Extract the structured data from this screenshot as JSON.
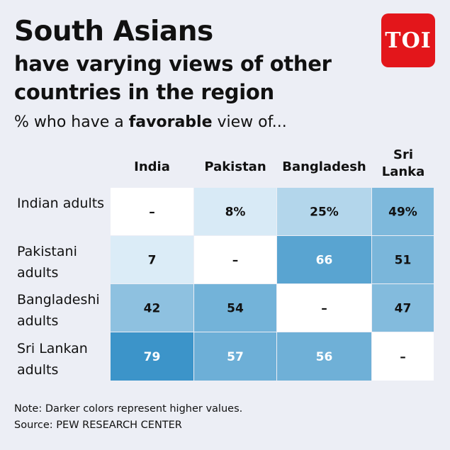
{
  "header": {
    "title": "South Asians",
    "subtitle": "have varying views of other countries in the region",
    "lead_prefix": "% who have a ",
    "lead_bold": "favorable",
    "lead_suffix": " view of..."
  },
  "logo": {
    "text": "TOI",
    "color": "#e3161b"
  },
  "footer": {
    "note": "Note: Darker colors represent higher values.",
    "source": "Source: PEW RESEARCH CENTER"
  },
  "chart_data": {
    "type": "heatmap",
    "columns": [
      "India",
      "Pakistan",
      "Bangladesh",
      "Sri Lanka"
    ],
    "rows": [
      "Indian adults",
      "Pakistani adults",
      "Bangladeshi adults",
      "Sri Lankan adults"
    ],
    "values": [
      [
        null,
        8,
        25,
        49
      ],
      [
        7,
        null,
        66,
        51
      ],
      [
        42,
        54,
        null,
        47
      ],
      [
        79,
        57,
        56,
        null
      ]
    ],
    "labels": [
      [
        "–",
        "8%",
        "25%",
        "49%"
      ],
      [
        "7",
        "–",
        "66",
        "51"
      ],
      [
        "42",
        "54",
        "–",
        "47"
      ],
      [
        "79",
        "57",
        "56",
        "–"
      ]
    ],
    "colors": {
      "empty": "#ffffff",
      "low": "#eaf4fb",
      "high": "#3a93c8",
      "dark_text": "#111111",
      "light_text": "#ffffff"
    }
  }
}
